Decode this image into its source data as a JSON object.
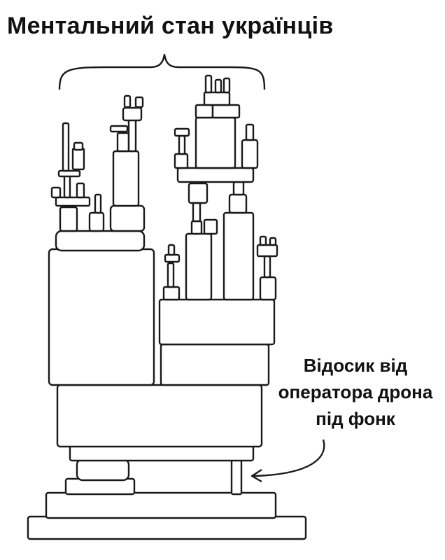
{
  "meme": {
    "title": "Ментальний стан українців",
    "callout": {
      "lines": [
        "Відосик від",
        "оператора дрона",
        "під фонк"
      ]
    },
    "illustration": "jenga-like-tower-icon"
  },
  "colors": {
    "background": "#ffffff",
    "ink": "#1a1a1a",
    "text": "#111111"
  }
}
